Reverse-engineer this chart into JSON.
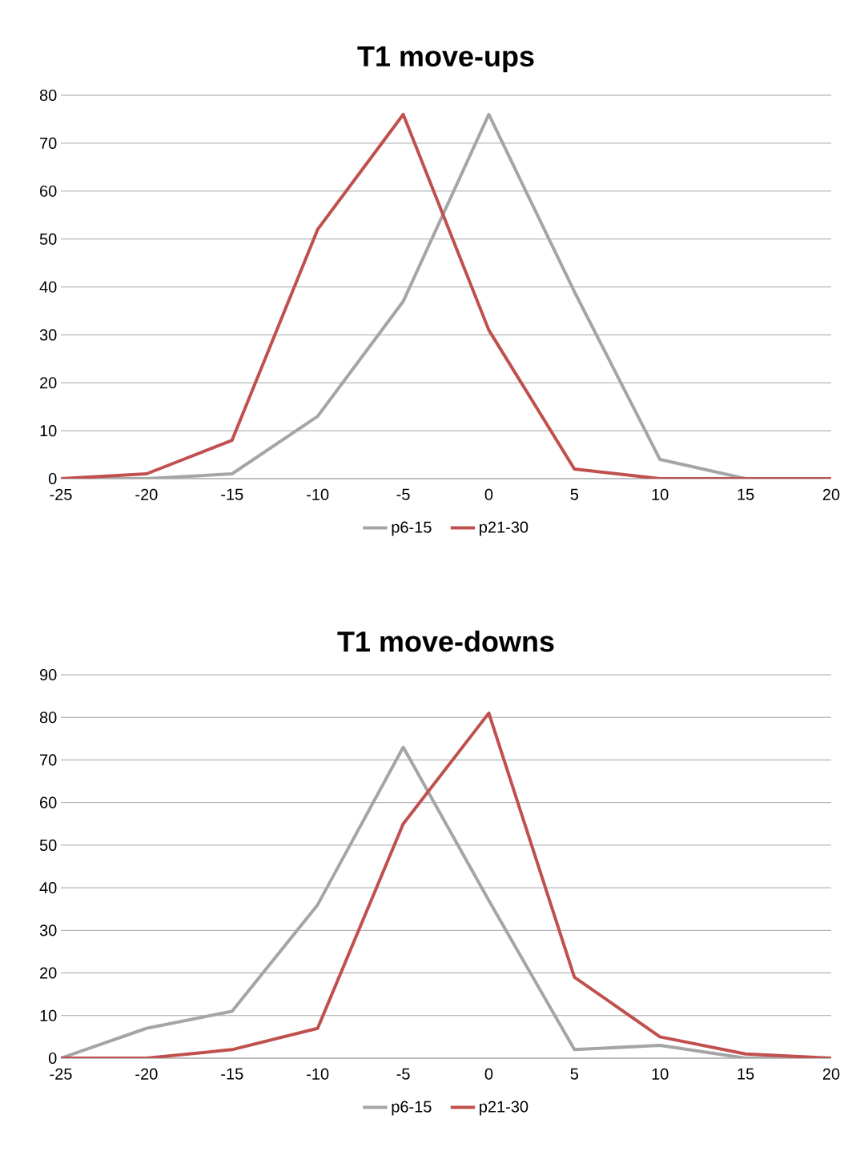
{
  "chart_data": [
    {
      "type": "line",
      "title": "T1 move-ups",
      "categories": [
        "-25",
        "-20",
        "-15",
        "-10",
        "-5",
        "0",
        "5",
        "10",
        "15",
        "20"
      ],
      "series": [
        {
          "name": "p6-15",
          "color": "#a5a5a5",
          "values": [
            0,
            0,
            1,
            13,
            37,
            76,
            39,
            4,
            0,
            0
          ]
        },
        {
          "name": "p21-30",
          "color": "#c0504d",
          "values": [
            0,
            1,
            8,
            52,
            76,
            31,
            2,
            0,
            0,
            0
          ]
        }
      ],
      "ylim": [
        0,
        80
      ],
      "yticks": [
        0,
        10,
        20,
        30,
        40,
        50,
        60,
        70,
        80
      ],
      "grid": "y",
      "legend": "bottom"
    },
    {
      "type": "line",
      "title": "T1 move-downs",
      "categories": [
        "-25",
        "-20",
        "-15",
        "-10",
        "-5",
        "0",
        "5",
        "10",
        "15",
        "20"
      ],
      "series": [
        {
          "name": "p6-15",
          "color": "#a5a5a5",
          "values": [
            0,
            7,
            11,
            36,
            73,
            37,
            2,
            3,
            0,
            0
          ]
        },
        {
          "name": "p21-30",
          "color": "#c0504d",
          "values": [
            0,
            0,
            2,
            7,
            55,
            81,
            19,
            5,
            1,
            0
          ]
        }
      ],
      "ylim": [
        0,
        90
      ],
      "yticks": [
        0,
        10,
        20,
        30,
        40,
        50,
        60,
        70,
        80,
        90
      ],
      "grid": "y",
      "legend": "bottom"
    }
  ]
}
